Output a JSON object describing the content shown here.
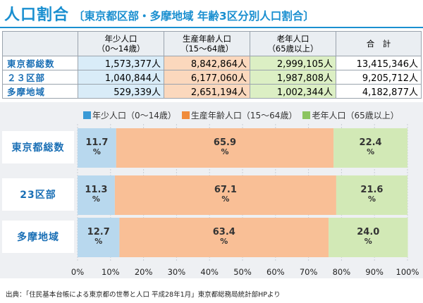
{
  "title": {
    "main": "人口割合",
    "sub": "〔東京都区部・多摩地域 年齢3区分別人口割合〕"
  },
  "table": {
    "headers": [
      {
        "line1": "年少人口",
        "line2": "（0～14歳）"
      },
      {
        "line1": "生産年齢人口",
        "line2": "（15～64歳）"
      },
      {
        "line1": "老年人口",
        "line2": "（65歳以上）"
      },
      {
        "line1": "合　計",
        "line2": ""
      }
    ],
    "rows": [
      {
        "label": "東京都総数",
        "cells": [
          "1,573,377人",
          "8,842,864人",
          "2,999,105人",
          "13,415,346人"
        ]
      },
      {
        "label": "２３区部",
        "cells": [
          "1,040,844人",
          "6,177,060人",
          "1,987,808人",
          "9,205,712人"
        ]
      },
      {
        "label": "多摩地域",
        "cells": [
          "529,339人",
          "2,651,194人",
          "1,002,344人",
          "4,182,877人"
        ]
      }
    ]
  },
  "chart_data": {
    "type": "bar",
    "orientation": "horizontal",
    "stacked": true,
    "categories": [
      "東京都総数",
      "23区部",
      "多摩地域"
    ],
    "series": [
      {
        "name": "年少人口（0～14歳）",
        "color": "#3a9ad6",
        "values": [
          11.7,
          11.3,
          12.7
        ],
        "labels": [
          "11.7\n%",
          "11.3\n%",
          "12.7\n%"
        ]
      },
      {
        "name": "生産年齢人口（15～64歳）",
        "color": "#f08c3c",
        "values": [
          65.9,
          67.1,
          63.4
        ],
        "labels": [
          "65.9\n%",
          "67.1\n%",
          "63.4\n%"
        ]
      },
      {
        "name": "老年人口（65歳以上）",
        "color": "#8cc460",
        "values": [
          22.4,
          21.6,
          24.0
        ],
        "labels": [
          "22.4\n%",
          "21.6\n%",
          "24.0\n%"
        ]
      }
    ],
    "segment_fill": [
      "#b8d8ee",
      "#f9bf96",
      "#d2e9b6"
    ],
    "xlim": [
      0,
      100
    ],
    "xticks": [
      "0%",
      "10%",
      "20%",
      "30%",
      "40%",
      "50%",
      "60%",
      "70%",
      "80%",
      "90%",
      "100%"
    ],
    "legend": "top",
    "grid": true
  },
  "source": "出典：「住民基本台帳による東京都の世帯と人口 平成28年1月」東京都総務局統計部HPより"
}
